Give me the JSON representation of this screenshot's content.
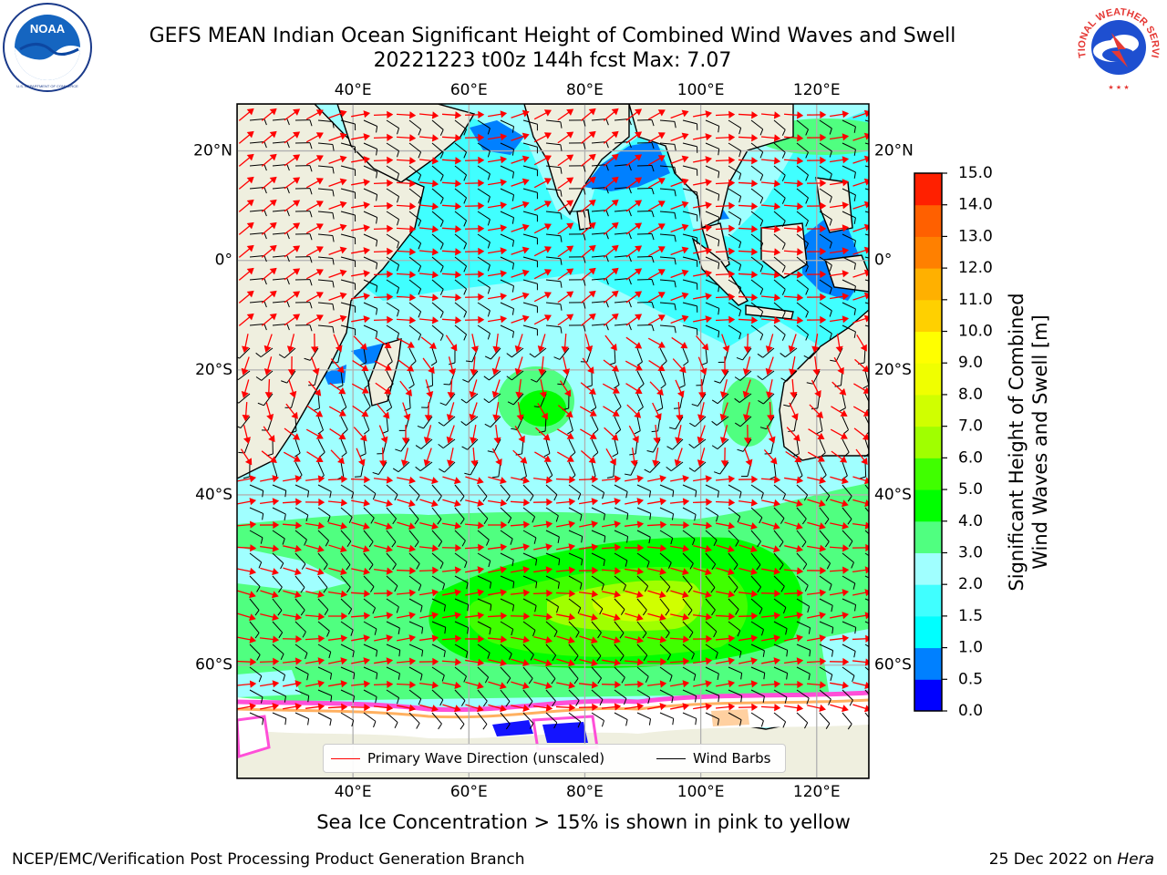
{
  "header": {
    "title_line1": "GEFS MEAN Indian Ocean Significant Height of Combined Wind Waves and Swell",
    "title_line2": "20221223 t00z 144h fcst   Max: 7.07"
  },
  "logos": {
    "left": "noaa-logo",
    "left_text": "NOAA",
    "left_ring_text": "NATIONAL OCEANIC AND ATMOSPHERIC ADMINISTRATION · U.S. DEPARTMENT OF COMMERCE",
    "right": "nws-logo",
    "right_ring_text": "NATIONAL WEATHER SERVICE"
  },
  "map": {
    "top_lon_labels": [
      "40°E",
      "60°E",
      "80°E",
      "100°E",
      "120°E"
    ],
    "bottom_lon_labels": [
      "40°E",
      "60°E",
      "80°E",
      "100°E",
      "120°E"
    ],
    "left_lat_labels": [
      "20°N",
      "0°",
      "20°S",
      "40°S",
      "60°S"
    ],
    "right_lat_labels": [
      "20°N",
      "0°",
      "20°S",
      "40°S",
      "60°S"
    ],
    "lon_values": [
      40,
      60,
      80,
      100,
      120
    ],
    "lat_values": [
      20,
      0,
      -20,
      -40,
      -60
    ],
    "extent": {
      "lon_min": 20,
      "lon_max": 129,
      "lat_min": -69,
      "lat_max": 28
    },
    "wave_max": 7.07,
    "colors": {
      "land": "#efefdf",
      "sea_ice": "#ffffff",
      "wave_arrow": "#ff0000",
      "wind_barb": "#000000"
    }
  },
  "legend": {
    "items": [
      {
        "label": "Primary Wave Direction (unscaled)",
        "color": "#ff0000"
      },
      {
        "label": "Wind Barbs",
        "color": "#000000"
      }
    ]
  },
  "colorbar": {
    "title_line1": "Significant Height of Combined",
    "title_line2": "Wind Waves and Swell [m]",
    "ticks": [
      "0.0",
      "0.5",
      "1.0",
      "1.5",
      "2.0",
      "3.0",
      "4.0",
      "5.0",
      "6.0",
      "7.0",
      "8.0",
      "9.0",
      "10.0",
      "11.0",
      "12.0",
      "13.0",
      "14.0",
      "15.0"
    ],
    "colors": [
      "#0000ff",
      "#0080ff",
      "#00ffff",
      "#40ffff",
      "#a0ffff",
      "#50ff80",
      "#00ff00",
      "#40ff00",
      "#a0ff00",
      "#d0ff00",
      "#f0ff00",
      "#ffff00",
      "#ffd000",
      "#ffb000",
      "#ff8000",
      "#ff6000",
      "#ff2000"
    ]
  },
  "notes": {
    "ice": "Sea Ice Concentration > 15% is shown in pink to yellow"
  },
  "footer": {
    "left": "NCEP/EMC/Verification Post Processing Product Generation Branch",
    "right_prefix": "25 Dec 2022 on ",
    "right_machine": "Hera"
  }
}
